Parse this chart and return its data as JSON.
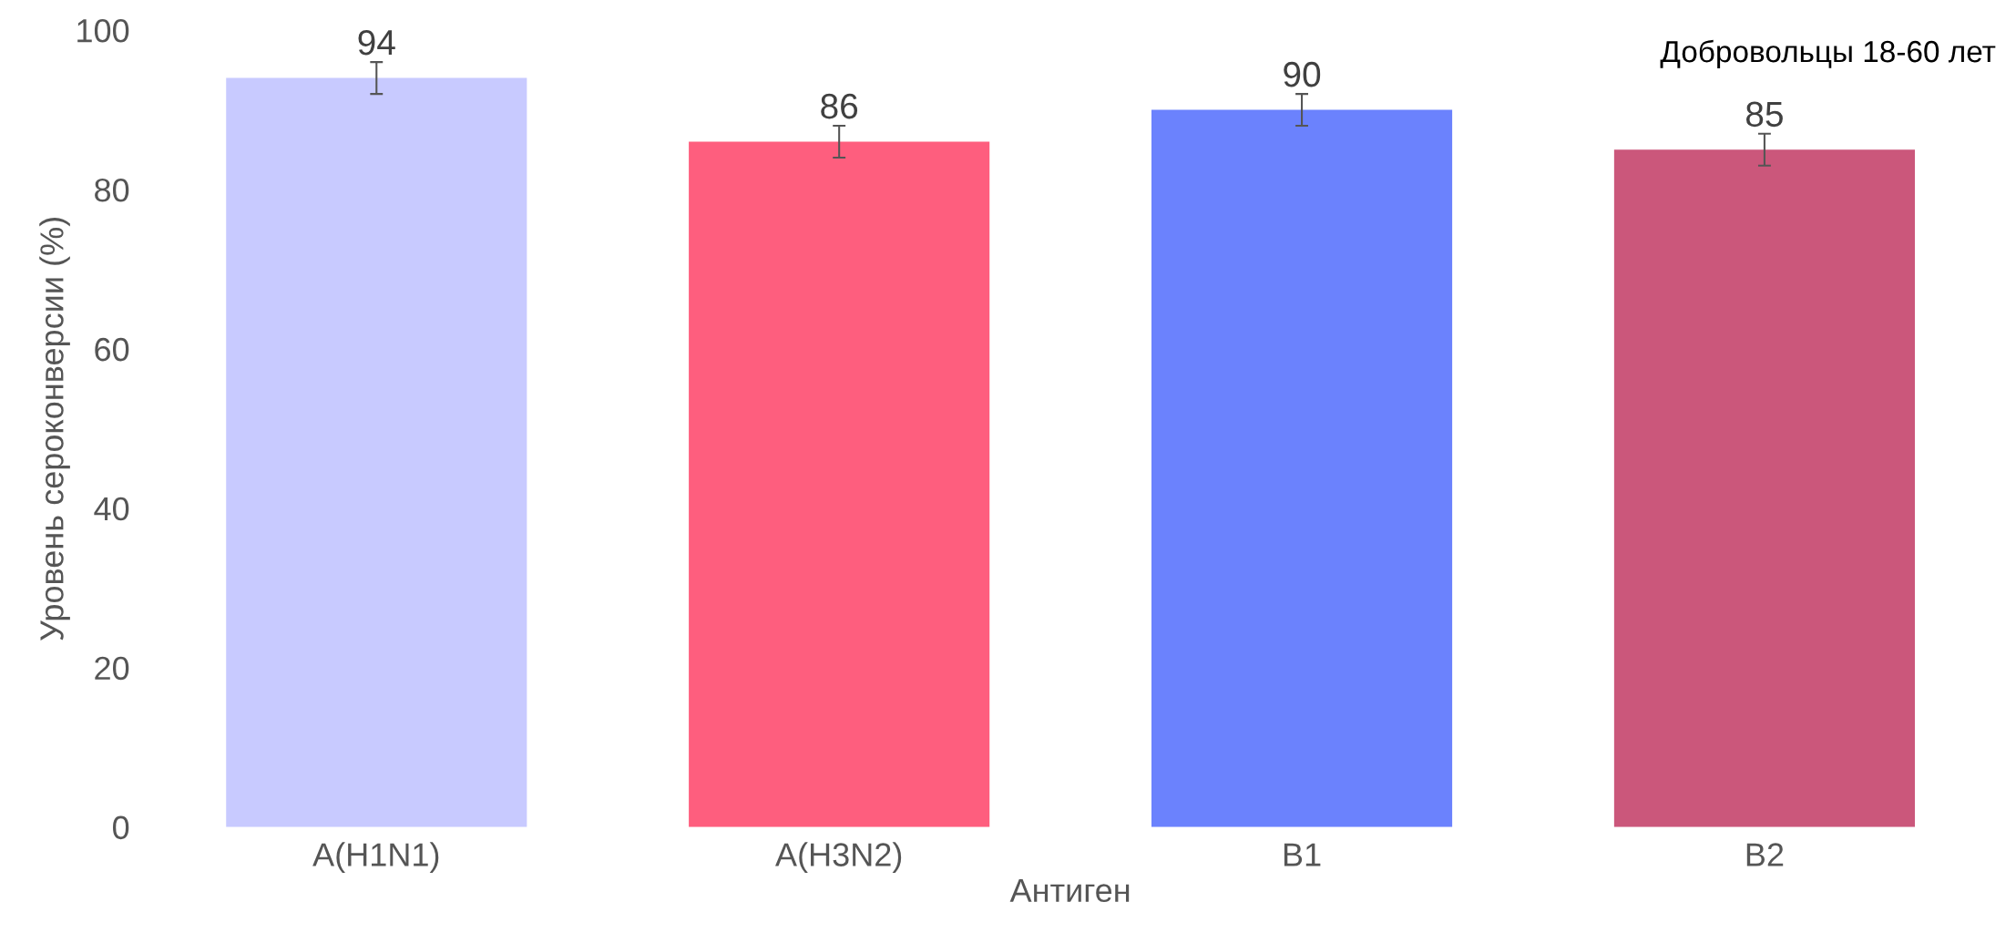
{
  "chart_data": {
    "type": "bar",
    "title": "Добровольцы 18-60 лет",
    "xlabel": "Антиген",
    "ylabel": "Уровень сероконверсии (%)",
    "categories": [
      "A(H1N1)",
      "A(H3N2)",
      "B1",
      "B2"
    ],
    "values": [
      94,
      86,
      90,
      85
    ],
    "errors": [
      2,
      2,
      2,
      2
    ],
    "colors": [
      "#c8caff",
      "#fe5e7e",
      "#6b82fd",
      "#cb577b"
    ],
    "ylim": [
      0,
      100
    ],
    "yticks": [
      0,
      20,
      40,
      60,
      80,
      100
    ],
    "grid": false,
    "data_labels": true
  }
}
